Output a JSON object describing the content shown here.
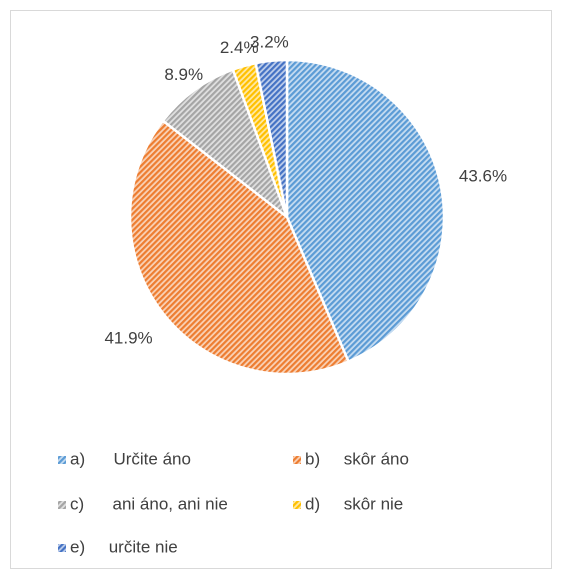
{
  "chart_data": {
    "type": "pie",
    "categories": [
      "a)      Určite áno",
      "b)     skôr áno",
      "c)      ani áno, ani nie",
      "d)     skôr nie",
      "e)     určite nie"
    ],
    "values": [
      43.6,
      41.9,
      8.9,
      2.4,
      3.2
    ],
    "value_labels": [
      "43.6%",
      "41.9%",
      "8.9%",
      "2.4%",
      "3.2%"
    ],
    "colors": [
      "#5b9bd5",
      "#ed7d31",
      "#a5a5a5",
      "#ffc000",
      "#4472c4"
    ],
    "legend": "bottom"
  }
}
